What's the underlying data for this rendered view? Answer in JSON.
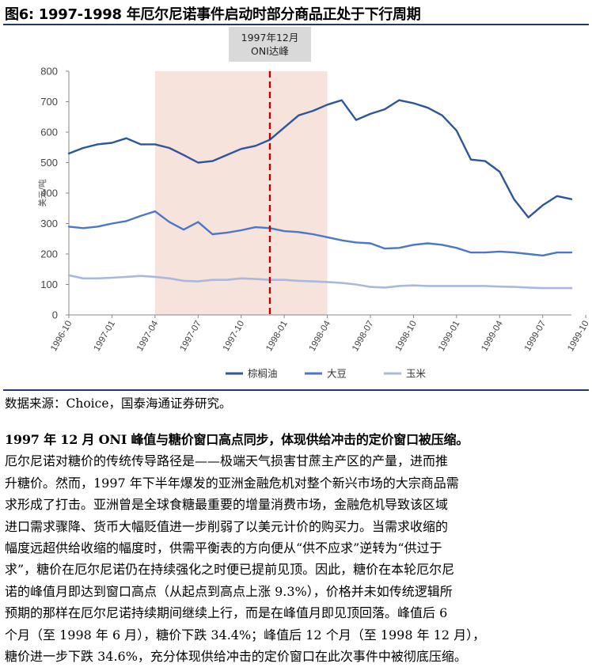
{
  "figure": {
    "title": "图6:  1997-1998 年厄尔尼诺事件启动时部分商品正处于下行周期"
  },
  "chart_data": {
    "type": "line",
    "ylabel": "美元/吨",
    "ylim": [
      0,
      800
    ],
    "yticks": [
      "0",
      "100",
      "200",
      "300",
      "400",
      "500",
      "600",
      "700",
      "800"
    ],
    "xticks": [
      "1996-10",
      "1997-01",
      "1997-04",
      "1997-07",
      "1997-10",
      "1998-01",
      "1998-04",
      "1998-07",
      "1998-10",
      "1999-01",
      "1999-04",
      "1999-07",
      "1999-10"
    ],
    "annotation": "1997年12月\nONI达峰",
    "shaded_range": [
      "1997-04",
      "1998-04"
    ],
    "marker_date": "1997-12",
    "legend_position": "bottom-right",
    "series": [
      {
        "name": "棕榈油",
        "color": "#2e569a",
        "values": [
          530,
          548,
          560,
          565,
          580,
          560,
          560,
          548,
          525,
          500,
          505,
          525,
          545,
          555,
          575,
          615,
          655,
          670,
          690,
          705,
          640,
          660,
          675,
          705,
          695,
          680,
          655,
          605,
          510,
          505,
          470,
          380,
          320,
          360,
          390,
          380
        ]
      },
      {
        "name": "大豆",
        "color": "#4a78c6",
        "values": [
          290,
          285,
          290,
          300,
          308,
          325,
          340,
          305,
          280,
          305,
          265,
          270,
          278,
          288,
          285,
          275,
          272,
          265,
          255,
          245,
          238,
          235,
          218,
          220,
          230,
          235,
          230,
          220,
          205,
          205,
          208,
          205,
          200,
          195,
          205,
          205
        ]
      },
      {
        "name": "玉米",
        "color": "#aab8dd",
        "values": [
          130,
          120,
          120,
          122,
          125,
          128,
          125,
          120,
          112,
          110,
          115,
          115,
          120,
          118,
          115,
          115,
          112,
          110,
          108,
          105,
          100,
          92,
          90,
          95,
          97,
          95,
          95,
          95,
          95,
          95,
          93,
          92,
          90,
          88,
          88,
          88
        ]
      }
    ]
  },
  "source": "数据来源：Choice，国泰海通证券研究。",
  "paragraph": {
    "heading": "1997 年 12 月 ONI 峰值与糖价窗口高点同步，体现供给冲击的定价窗口被压缩。",
    "lines": [
      "厄尔尼诺对糖价的传统传导路径是——极端天气损害甘蔗主产区的产量，进而推",
      "升糖价。然而，1997 年下半年爆发的亚洲金融危机对整个新兴市场的大宗商品需",
      "求形成了打击。亚洲曾是全球食糖最重要的增量消费市场，金融危机导致该区域",
      "进口需求骤降、货币大幅贬值进一步削弱了以美元计价的购买力。当需求收缩的",
      "幅度远超供给收缩的幅度时，供需平衡表的方向便从“供不应求”逆转为“供过于",
      "求”，糖价在厄尔尼诺仍在持续强化之时便已提前见顶。因此，糖价在本轮厄尔尼",
      "诺的峰值月即达到窗口高点（从起点到高点上涨 9.3%），价格并未如传统逻辑所",
      "预期的那样在厄尔尼诺持续期间继续上行，而是在峰值月即见顶回落。峰值后 6",
      "个月（至 1998 年 6 月），糖价下跌 34.4%；峰值后 12 个月（至 1998 年 12 月），",
      "糖价进一步下跌 34.6%，充分体现供给冲击的定价窗口在此次事件中被彻底压缩。"
    ]
  }
}
